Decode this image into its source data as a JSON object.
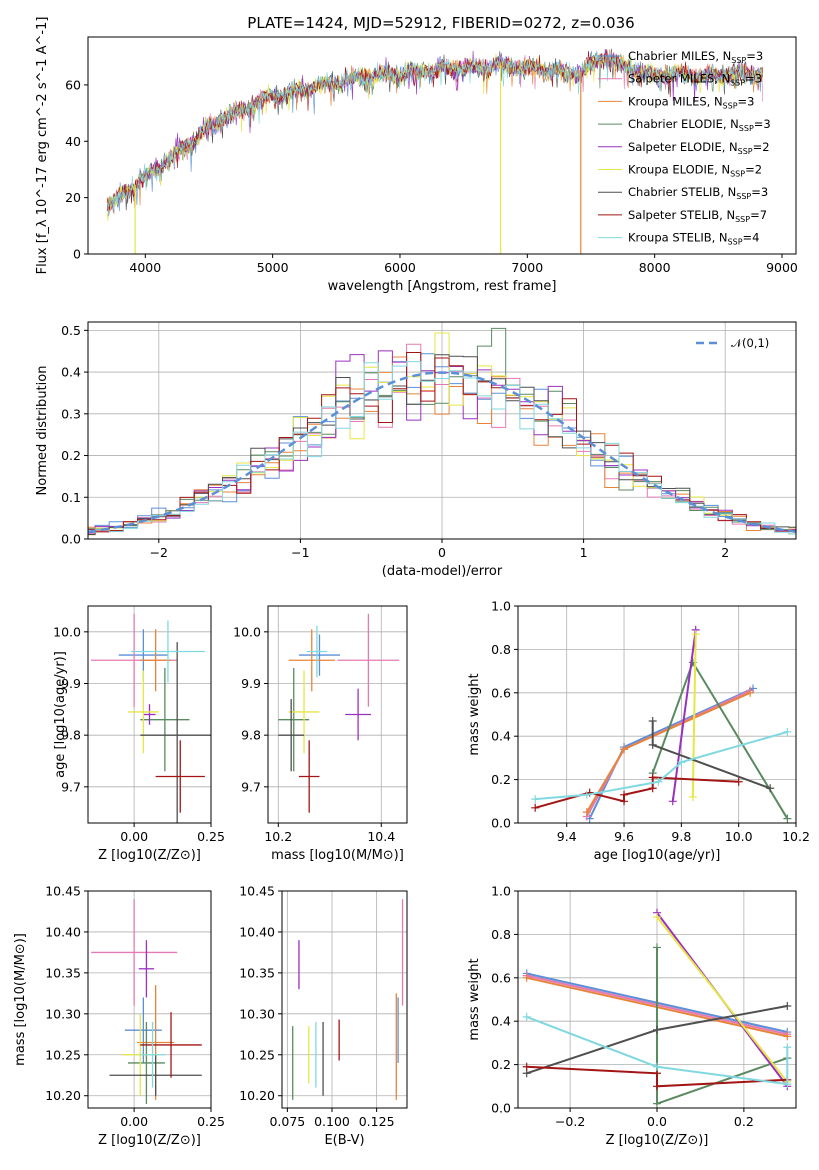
{
  "title": "PLATE=1424, MJD=52912, FIBERID=0272, z=0.036",
  "colors": [
    "#5b8fd8",
    "#e57ab2",
    "#e8843a",
    "#5a8a60",
    "#9b30c0",
    "#e6e645",
    "#4f4f4f",
    "#a31515",
    "#80d8e0"
  ],
  "legend": [
    {
      "label": "Chabrier MILES, N",
      "sub": "SSP",
      "suf": "=3"
    },
    {
      "label": "Salpeter MILES, N",
      "sub": "SSP",
      "suf": "=3"
    },
    {
      "label": "Kroupa MILES, N",
      "sub": "SSP",
      "suf": "=3"
    },
    {
      "label": "Chabrier ELODIE, N",
      "sub": "SSP",
      "suf": "=3"
    },
    {
      "label": "Salpeter ELODIE, N",
      "sub": "SSP",
      "suf": "=2"
    },
    {
      "label": "Kroupa ELODIE, N",
      "sub": "SSP",
      "suf": "=2"
    },
    {
      "label": "Chabrier STELIB, N",
      "sub": "SSP",
      "suf": "=3"
    },
    {
      "label": "Salpeter STELIB, N",
      "sub": "SSP",
      "suf": "=7"
    },
    {
      "label": "Kroupa STELIB, N",
      "sub": "SSP",
      "suf": "=4"
    }
  ],
  "chart_data": [
    {
      "panel": "spectrum",
      "type": "line",
      "xlabel": "wavelength [Angstrom, rest frame]",
      "ylabel": "Flux [f_λ 10^-17 erg cm^-2 s^-1 A^-1]",
      "xlim": [
        3550,
        9110
      ],
      "ylim": [
        0,
        77
      ],
      "xticks": [
        4000,
        5000,
        6000,
        7000,
        8000,
        9000
      ],
      "yticks": [
        0,
        20,
        40,
        60
      ],
      "continuum_x": [
        3700,
        3800,
        3900,
        4000,
        4100,
        4200,
        4300,
        4400,
        4500,
        4600,
        4800,
        5000,
        5200,
        5400,
        5600,
        5800,
        6000,
        6200,
        6400,
        6600,
        6800,
        7000,
        7200,
        7400,
        7600,
        7800,
        8000,
        8200,
        8400,
        8600,
        8850
      ],
      "continuum_y": [
        17,
        20,
        24,
        27,
        31,
        34,
        38,
        41,
        45,
        48,
        52,
        56,
        58,
        60,
        62,
        63,
        64,
        65,
        66,
        66,
        67,
        66,
        65,
        64,
        70,
        66,
        63,
        64,
        63,
        64,
        64
      ],
      "dropouts": [
        {
          "x": 3920,
          "series": 5
        },
        {
          "x": 6790,
          "series": 5
        },
        {
          "x": 7420,
          "series": 2
        }
      ]
    },
    {
      "panel": "residuals",
      "type": "histogram",
      "xlabel": "(data-model)/error",
      "ylabel": "Normed distribution",
      "xlim": [
        -2.5,
        2.5
      ],
      "ylim": [
        0,
        0.52
      ],
      "xticks": [
        -2,
        -1,
        0,
        1,
        2
      ],
      "yticks": [
        0.0,
        0.1,
        0.2,
        0.3,
        0.4,
        0.5
      ],
      "legend": "𝒩(0,1)",
      "bin_width": 0.1
    },
    {
      "panel": "age_vs_Z",
      "type": "errorbar",
      "xlabel": "Z [log10(Z/Z⊙)]",
      "ylabel": "age [log10(age/yr)]",
      "xlim": [
        -0.15,
        0.25
      ],
      "ylim": [
        9.63,
        10.05
      ],
      "xticks": [
        0.0,
        0.25
      ],
      "yticks": [
        9.7,
        9.8,
        9.9,
        10.0
      ],
      "points": [
        {
          "s": 0,
          "x": 0.03,
          "y": 9.955,
          "xe": 0.08,
          "ye": 0.05
        },
        {
          "s": 1,
          "x": 0.0,
          "y": 9.945,
          "xe": 0.14,
          "ye": 0.09
        },
        {
          "s": 2,
          "x": 0.07,
          "y": 9.945,
          "xe": 0.05,
          "ye": 0.06
        },
        {
          "s": 3,
          "x": 0.1,
          "y": 9.83,
          "xe": 0.08,
          "ye": 0.1
        },
        {
          "s": 4,
          "x": 0.05,
          "y": 9.84,
          "xe": 0.02,
          "ye": 0.02
        },
        {
          "s": 5,
          "x": 0.03,
          "y": 9.845,
          "xe": 0.05,
          "ye": 0.08
        },
        {
          "s": 6,
          "x": 0.14,
          "y": 9.8,
          "xe": 0.12,
          "ye": 0.18
        },
        {
          "s": 7,
          "x": 0.15,
          "y": 9.72,
          "xe": 0.08,
          "ye": 0.07
        },
        {
          "s": 8,
          "x": 0.11,
          "y": 9.962,
          "xe": 0.12,
          "ye": 0.06
        }
      ]
    },
    {
      "panel": "age_vs_mass",
      "type": "errorbar",
      "xlabel": "mass [log10(M/M⊙)]",
      "xlim": [
        10.18,
        10.45
      ],
      "ylim": [
        9.63,
        10.05
      ],
      "xticks": [
        10.2,
        10.4
      ],
      "yticks": [
        9.7,
        9.8,
        9.9,
        10.0
      ],
      "points": [
        {
          "s": 0,
          "x": 10.28,
          "y": 9.955,
          "xe": 0.04,
          "ye": 0.04
        },
        {
          "s": 1,
          "x": 10.375,
          "y": 9.945,
          "xe": 0.06,
          "ye": 0.09
        },
        {
          "s": 2,
          "x": 10.265,
          "y": 9.945,
          "xe": 0.045,
          "ye": 0.06
        },
        {
          "s": 3,
          "x": 10.23,
          "y": 9.83,
          "xe": 0.03,
          "ye": 0.1
        },
        {
          "s": 4,
          "x": 10.355,
          "y": 9.84,
          "xe": 0.025,
          "ye": 0.05
        },
        {
          "s": 5,
          "x": 10.25,
          "y": 9.845,
          "xe": 0.03,
          "ye": 0.08
        },
        {
          "s": 6,
          "x": 10.225,
          "y": 9.8,
          "xe": 0.025,
          "ye": 0.07
        },
        {
          "s": 7,
          "x": 10.26,
          "y": 9.72,
          "xe": 0.02,
          "ye": 0.07
        },
        {
          "s": 8,
          "x": 10.275,
          "y": 9.962,
          "xe": 0.02,
          "ye": 0.05
        }
      ]
    },
    {
      "panel": "massweight_vs_age",
      "type": "line",
      "xlabel": "age [log10(age/yr)]",
      "ylabel": "mass weight",
      "xlim": [
        9.23,
        10.2
      ],
      "ylim": [
        0,
        1.0
      ],
      "xticks": [
        9.4,
        9.6,
        9.8,
        10.0,
        10.2
      ],
      "yticks": [
        0.0,
        0.2,
        0.4,
        0.6,
        0.8,
        1.0
      ],
      "series": [
        {
          "s": 0,
          "x": [
            9.48,
            9.6,
            10.05
          ],
          "y": [
            0.02,
            0.35,
            0.62
          ]
        },
        {
          "s": 1,
          "x": [
            9.47,
            9.6,
            10.04
          ],
          "y": [
            0.03,
            0.34,
            0.61
          ]
        },
        {
          "s": 2,
          "x": [
            9.47,
            9.6,
            10.04
          ],
          "y": [
            0.05,
            0.34,
            0.6
          ]
        },
        {
          "s": 3,
          "x": [
            9.7,
            9.84,
            10.17
          ],
          "y": [
            0.23,
            0.74,
            0.02
          ]
        },
        {
          "s": 4,
          "x": [
            9.77,
            9.85
          ],
          "y": [
            0.1,
            0.89
          ]
        },
        {
          "s": 5,
          "x": [
            9.84,
            9.85
          ],
          "y": [
            0.12,
            0.87
          ]
        },
        {
          "s": 6,
          "x": [
            9.7,
            9.7,
            10.11
          ],
          "y": [
            0.47,
            0.36,
            0.16
          ]
        },
        {
          "s": 7,
          "x": [
            9.29,
            9.48,
            9.6,
            9.6,
            9.7,
            9.7,
            10.0
          ],
          "y": [
            0.07,
            0.14,
            0.1,
            0.13,
            0.16,
            0.21,
            0.19
          ]
        },
        {
          "s": 8,
          "x": [
            9.29,
            9.47,
            9.72,
            9.8,
            10.17
          ],
          "y": [
            0.11,
            0.13,
            0.19,
            0.28,
            0.42
          ]
        }
      ]
    },
    {
      "panel": "mass_vs_Z",
      "type": "errorbar",
      "xlabel": "Z [log10(Z/Z⊙)]",
      "ylabel": "mass [log10(M/M⊙)]",
      "xlim": [
        -0.15,
        0.25
      ],
      "ylim": [
        10.185,
        10.45
      ],
      "xticks": [
        0.0,
        0.25
      ],
      "yticks": [
        10.2,
        10.25,
        10.3,
        10.35,
        10.4,
        10.45
      ],
      "points": [
        {
          "s": 0,
          "x": 0.03,
          "y": 10.28,
          "xe": 0.06,
          "ye": 0.04
        },
        {
          "s": 1,
          "x": 0.0,
          "y": 10.375,
          "xe": 0.14,
          "ye": 0.065
        },
        {
          "s": 2,
          "x": 0.07,
          "y": 10.265,
          "xe": 0.06,
          "ye": 0.07
        },
        {
          "s": 3,
          "x": 0.04,
          "y": 10.24,
          "xe": 0.06,
          "ye": 0.05
        },
        {
          "s": 4,
          "x": 0.04,
          "y": 10.355,
          "xe": 0.025,
          "ye": 0.035
        },
        {
          "s": 5,
          "x": 0.02,
          "y": 10.25,
          "xe": 0.06,
          "ye": 0.05
        },
        {
          "s": 6,
          "x": 0.07,
          "y": 10.225,
          "xe": 0.15,
          "ye": 0.025
        },
        {
          "s": 7,
          "x": 0.12,
          "y": 10.262,
          "xe": 0.1,
          "ye": 0.04
        },
        {
          "s": 8,
          "x": 0.06,
          "y": 10.25,
          "xe": 0.04,
          "ye": 0.04
        }
      ]
    },
    {
      "panel": "mass_vs_EBV",
      "type": "errorbar",
      "xlabel": "E(B-V)",
      "xlim": [
        0.072,
        0.142
      ],
      "ylim": [
        10.185,
        10.45
      ],
      "xticks": [
        0.075,
        0.1,
        0.125
      ],
      "yticks": [
        10.2,
        10.25,
        10.3,
        10.35,
        10.4,
        10.45
      ],
      "points": [
        {
          "s": 0,
          "x": 0.137,
          "y": 10.28,
          "xe": 0,
          "ye": 0.04
        },
        {
          "s": 1,
          "x": 0.1395,
          "y": 10.375,
          "xe": 0,
          "ye": 0.065
        },
        {
          "s": 2,
          "x": 0.136,
          "y": 10.26,
          "xe": 0,
          "ye": 0.065
        },
        {
          "s": 3,
          "x": 0.078,
          "y": 10.24,
          "xe": 0,
          "ye": 0.045
        },
        {
          "s": 4,
          "x": 0.0815,
          "y": 10.36,
          "xe": 0,
          "ye": 0.03
        },
        {
          "s": 5,
          "x": 0.087,
          "y": 10.25,
          "xe": 0,
          "ye": 0.035
        },
        {
          "s": 6,
          "x": 0.095,
          "y": 10.245,
          "xe": 0,
          "ye": 0.045
        },
        {
          "s": 7,
          "x": 0.104,
          "y": 10.268,
          "xe": 0,
          "ye": 0.025
        },
        {
          "s": 8,
          "x": 0.091,
          "y": 10.25,
          "xe": 0,
          "ye": 0.04
        }
      ]
    },
    {
      "panel": "massweight_vs_Z",
      "type": "line",
      "xlabel": "Z [log10(Z/Z⊙)]",
      "ylabel": "mass weight",
      "xlim": [
        -0.32,
        0.32
      ],
      "ylim": [
        0,
        1.0
      ],
      "xticks": [
        -0.2,
        0.0,
        0.2
      ],
      "yticks": [
        0.0,
        0.2,
        0.4,
        0.6,
        0.8,
        1.0
      ],
      "series": [
        {
          "s": 0,
          "x": [
            -0.3,
            0.3
          ],
          "y": [
            0.62,
            0.35
          ]
        },
        {
          "s": 1,
          "x": [
            -0.3,
            0.3
          ],
          "y": [
            0.61,
            0.34
          ]
        },
        {
          "s": 2,
          "x": [
            -0.3,
            0.3
          ],
          "y": [
            0.6,
            0.33
          ]
        },
        {
          "s": 3,
          "x": [
            0.0,
            0.0,
            0.3
          ],
          "y": [
            0.74,
            0.02,
            0.23
          ]
        },
        {
          "s": 4,
          "x": [
            0.0,
            0.3
          ],
          "y": [
            0.9,
            0.1
          ]
        },
        {
          "s": 5,
          "x": [
            0.0,
            0.3
          ],
          "y": [
            0.88,
            0.12
          ]
        },
        {
          "s": 6,
          "x": [
            -0.3,
            0.0,
            0.3
          ],
          "y": [
            0.16,
            0.36,
            0.47
          ]
        },
        {
          "s": 7,
          "x": [
            -0.3,
            0.0,
            0.0,
            0.3
          ],
          "y": [
            0.19,
            0.16,
            0.1,
            0.13
          ]
        },
        {
          "s": 8,
          "x": [
            -0.3,
            0.0,
            0.3,
            0.3
          ],
          "y": [
            0.42,
            0.19,
            0.11,
            0.28
          ]
        }
      ]
    }
  ]
}
